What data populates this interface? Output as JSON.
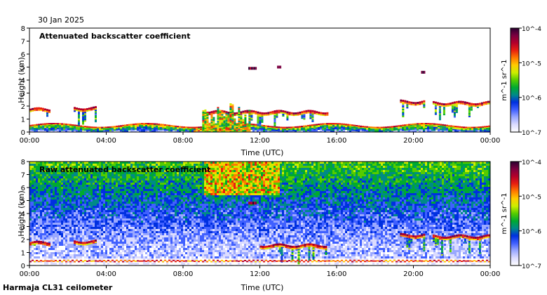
{
  "header": {
    "date": "30 Jan 2025"
  },
  "footer": {
    "station": "Harmaja CL31 ceilometer"
  },
  "colorbar": {
    "ticks": [
      "10^-4",
      "10^-5",
      "10^-6",
      "10^-7"
    ],
    "unit_label": "m^-1 sr^-1",
    "colors": [
      "#2a0030",
      "#7a0040",
      "#b4002a",
      "#e82010",
      "#ff7a00",
      "#ffcc00",
      "#ccee00",
      "#55cc00",
      "#00aa30",
      "#008a88",
      "#0030e0",
      "#4060ff",
      "#9aa8ff",
      "#dcdcff",
      "#ffffff"
    ]
  },
  "chart_data": [
    {
      "type": "heatmap",
      "title": "Attenuated backscatter coefficient",
      "xlabel": "Time (UTC)",
      "ylabel": "Height (km)",
      "xticks": [
        "00:00",
        "04:00",
        "08:00",
        "12:00",
        "16:00",
        "20:00",
        "00:00"
      ],
      "xlim": [
        0,
        24
      ],
      "yticks": [
        "0",
        "1",
        "2",
        "3",
        "4",
        "5",
        "6",
        "7",
        "8"
      ],
      "ylim": [
        0,
        8
      ],
      "clim": [
        "10^-7",
        "10^-4"
      ],
      "features": [
        {
          "name": "boundary layer",
          "t_start": 0,
          "t_end": 24,
          "h_top": 0.5
        },
        {
          "name": "cloud layer",
          "t_start": 0.0,
          "t_end": 1.0,
          "h": 1.7
        },
        {
          "name": "cloud layer",
          "t_start": 2.3,
          "t_end": 3.4,
          "h": 1.8
        },
        {
          "name": "cloud layer",
          "t_start": 9.0,
          "t_end": 15.5,
          "h": 1.5
        },
        {
          "name": "cloud layer",
          "t_start": 19.3,
          "t_end": 20.6,
          "h": 2.3
        },
        {
          "name": "cloud layer",
          "t_start": 21.0,
          "t_end": 24.0,
          "h": 2.2
        },
        {
          "name": "elevated patch",
          "t_start": 11.4,
          "t_end": 11.8,
          "h": 4.9
        },
        {
          "name": "elevated patch",
          "t_start": 12.9,
          "t_end": 13.1,
          "h": 5.0
        },
        {
          "name": "elevated patch",
          "t_start": 20.4,
          "t_end": 20.6,
          "h": 4.6
        }
      ]
    },
    {
      "type": "heatmap",
      "title": "Raw attenuated backscatter coefficient",
      "xlabel": "Time (UTC)",
      "ylabel": "Height (km)",
      "xticks": [
        "00:00",
        "04:00",
        "08:00",
        "12:00",
        "16:00",
        "20:00",
        "00:00"
      ],
      "xlim": [
        0,
        24
      ],
      "yticks": [
        "0",
        "1",
        "2",
        "3",
        "4",
        "5",
        "6",
        "7",
        "8"
      ],
      "ylim": [
        0,
        8
      ],
      "clim": [
        "10^-7",
        "10^-4"
      ],
      "features": [
        {
          "name": "noisy background",
          "t_start": 0,
          "t_end": 24,
          "h_bottom": 1.5
        },
        {
          "name": "high noise region",
          "t_start": 9.0,
          "t_end": 13.0,
          "h_bottom": 5.5
        },
        {
          "name": "cloud layer",
          "t_start": 0.0,
          "t_end": 1.0,
          "h": 1.7
        },
        {
          "name": "cloud layer",
          "t_start": 2.3,
          "t_end": 3.4,
          "h": 1.8
        },
        {
          "name": "cloud layer",
          "t_start": 12.0,
          "t_end": 15.5,
          "h": 1.5
        },
        {
          "name": "cloud layer",
          "t_start": 19.3,
          "t_end": 20.6,
          "h": 2.3
        },
        {
          "name": "cloud layer",
          "t_start": 21.0,
          "t_end": 24.0,
          "h": 2.2
        },
        {
          "name": "elevated patch",
          "t_start": 11.4,
          "t_end": 11.8,
          "h": 4.8
        }
      ]
    }
  ]
}
